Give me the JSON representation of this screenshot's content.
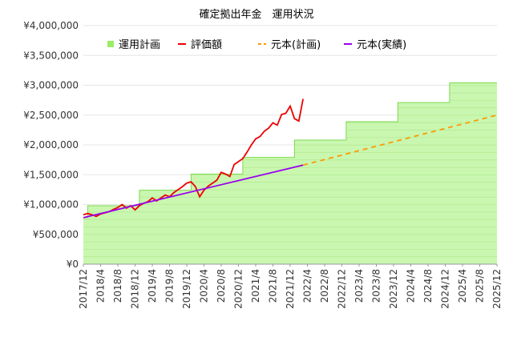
{
  "chart_data": {
    "type": "line",
    "title": "確定拠出年金　運用状況",
    "xlabel": "",
    "ylabel": "",
    "ylim": [
      0,
      4000000
    ],
    "yticks": [
      0,
      500000,
      1000000,
      1500000,
      2000000,
      2500000,
      3000000,
      3500000,
      4000000
    ],
    "ytick_labels": [
      "¥0",
      "¥500,000",
      "¥1,000,000",
      "¥1,500,000",
      "¥2,000,000",
      "¥2,500,000",
      "¥3,000,000",
      "¥3,500,000",
      "¥4,000,000"
    ],
    "x_range": [
      "2017/12",
      "2025/12"
    ],
    "xtick_labels": [
      "2017/12",
      "2018/4",
      "2018/8",
      "2018/12",
      "2019/4",
      "2019/8",
      "2019/12",
      "2020/4",
      "2020/8",
      "2020/12",
      "2021/4",
      "2021/8",
      "2021/12",
      "2022/4",
      "2022/8",
      "2022/12",
      "2023/4",
      "2023/8",
      "2023/12",
      "2024/4",
      "2024/8",
      "2024/12",
      "2025/4",
      "2025/8",
      "2025/12"
    ],
    "grid": "horizontal",
    "legend": "top",
    "series": [
      {
        "name": "運用計画",
        "kind": "area-step",
        "color": "#99ee66",
        "points": [
          [
            "2017/12",
            780000
          ],
          [
            "2018/1",
            980000
          ],
          [
            "2019/1",
            1240000
          ],
          [
            "2020/1",
            1510000
          ],
          [
            "2021/1",
            1790000
          ],
          [
            "2022/1",
            2080000
          ],
          [
            "2023/1",
            2390000
          ],
          [
            "2024/1",
            2710000
          ],
          [
            "2025/1",
            3040000
          ],
          [
            "2025/12",
            3040000
          ]
        ]
      },
      {
        "name": "評価額",
        "kind": "line",
        "color": "#ee0000",
        "points": [
          [
            "2017/12",
            830000
          ],
          [
            "2018/1",
            850000
          ],
          [
            "2018/2",
            830000
          ],
          [
            "2018/3",
            800000
          ],
          [
            "2018/4",
            840000
          ],
          [
            "2018/5",
            860000
          ],
          [
            "2018/6",
            880000
          ],
          [
            "2018/7",
            920000
          ],
          [
            "2018/8",
            950000
          ],
          [
            "2018/9",
            1000000
          ],
          [
            "2018/10",
            940000
          ],
          [
            "2018/11",
            980000
          ],
          [
            "2018/12",
            910000
          ],
          [
            "2019/1",
            980000
          ],
          [
            "2019/2",
            1020000
          ],
          [
            "2019/3",
            1050000
          ],
          [
            "2019/4",
            1110000
          ],
          [
            "2019/5",
            1060000
          ],
          [
            "2019/6",
            1110000
          ],
          [
            "2019/7",
            1160000
          ],
          [
            "2019/8",
            1130000
          ],
          [
            "2019/9",
            1200000
          ],
          [
            "2019/10",
            1250000
          ],
          [
            "2019/11",
            1300000
          ],
          [
            "2019/12",
            1360000
          ],
          [
            "2020/1",
            1380000
          ],
          [
            "2020/2",
            1300000
          ],
          [
            "2020/3",
            1130000
          ],
          [
            "2020/4",
            1240000
          ],
          [
            "2020/5",
            1310000
          ],
          [
            "2020/6",
            1360000
          ],
          [
            "2020/7",
            1410000
          ],
          [
            "2020/8",
            1540000
          ],
          [
            "2020/9",
            1510000
          ],
          [
            "2020/10",
            1470000
          ],
          [
            "2020/11",
            1670000
          ],
          [
            "2020/12",
            1720000
          ],
          [
            "2021/1",
            1770000
          ],
          [
            "2021/2",
            1880000
          ],
          [
            "2021/3",
            2000000
          ],
          [
            "2021/4",
            2100000
          ],
          [
            "2021/5",
            2140000
          ],
          [
            "2021/6",
            2230000
          ],
          [
            "2021/7",
            2280000
          ],
          [
            "2021/8",
            2370000
          ],
          [
            "2021/9",
            2330000
          ],
          [
            "2021/10",
            2510000
          ],
          [
            "2021/11",
            2530000
          ],
          [
            "2021/12",
            2650000
          ],
          [
            "2022/1",
            2440000
          ],
          [
            "2022/2",
            2400000
          ],
          [
            "2022/3",
            2770000
          ]
        ]
      },
      {
        "name": "元本(計画)",
        "kind": "dashed-line",
        "color": "#ff9900",
        "points": [
          [
            "2022/3",
            1660000
          ],
          [
            "2025/12",
            2500000
          ]
        ]
      },
      {
        "name": "元本(実績)",
        "kind": "line",
        "color": "#9900ee",
        "points": [
          [
            "2017/12",
            780000
          ],
          [
            "2022/3",
            1660000
          ]
        ]
      }
    ]
  }
}
